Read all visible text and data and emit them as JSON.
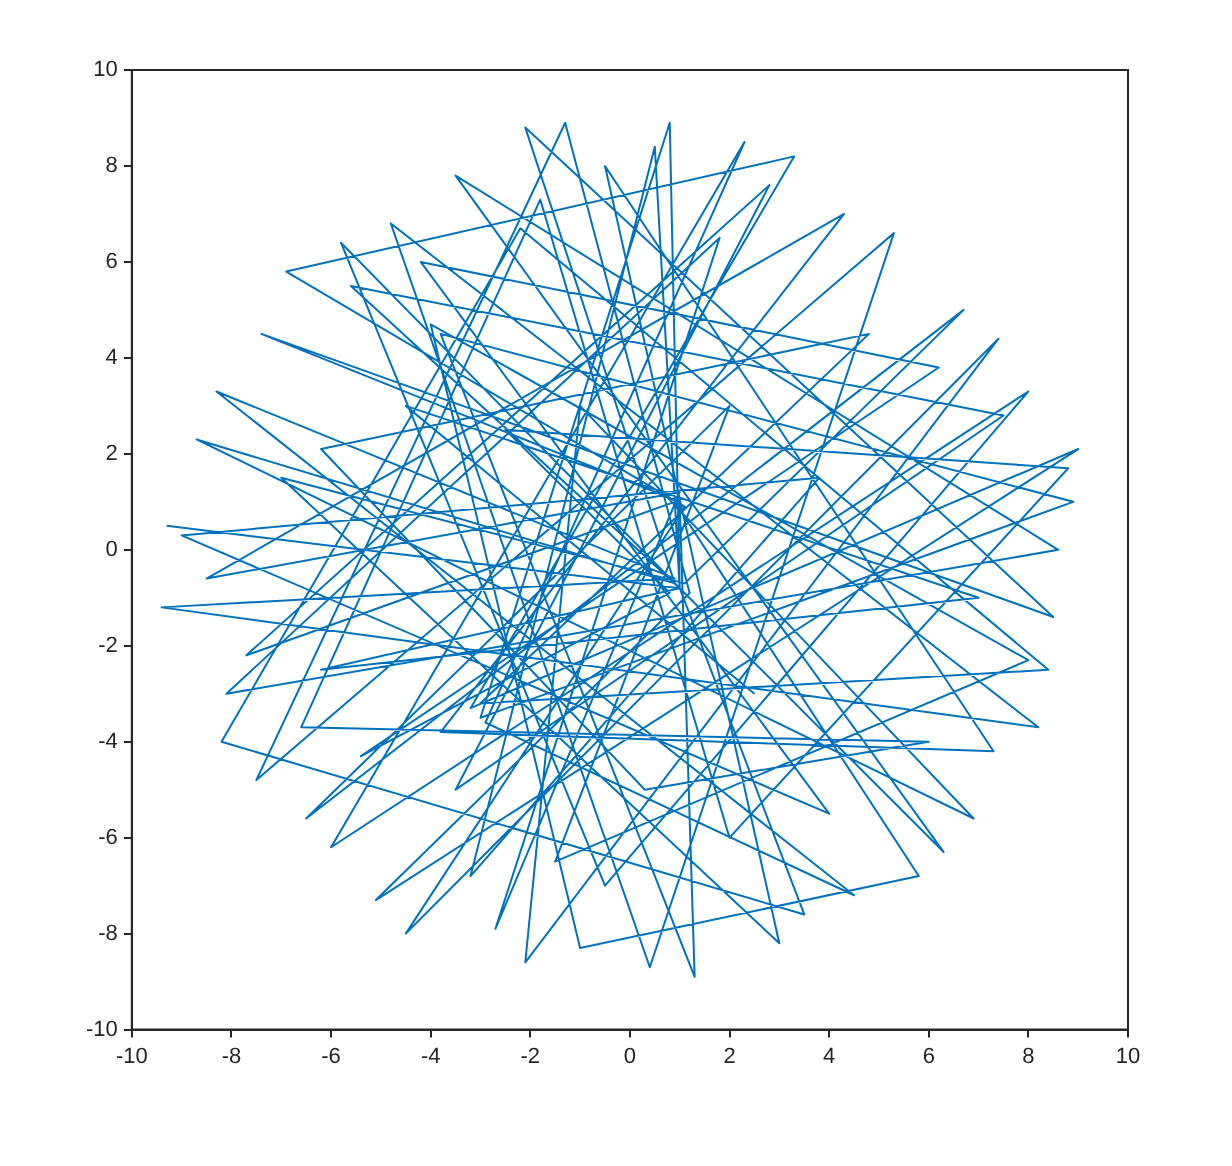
{
  "chart_data": {
    "type": "line",
    "xlim": [
      -10,
      10
    ],
    "ylim": [
      -10,
      10
    ],
    "xticks": [
      -10,
      -8,
      -6,
      -4,
      -2,
      0,
      2,
      4,
      6,
      8,
      10
    ],
    "yticks": [
      -10,
      -8,
      -6,
      -4,
      -2,
      0,
      2,
      4,
      6,
      8,
      10
    ],
    "grid": false,
    "legend": false,
    "marker": "none",
    "line_style": "solid",
    "series": [
      {
        "color": "#0072bd",
        "x": [
          -9.3,
          1.0,
          0.8,
          -3.0,
          8.9,
          -3.8,
          1.3,
          1.0,
          -7.4,
          8.5,
          -2.1,
          0.9,
          -8.7,
          6.9,
          -1.0,
          -2.1,
          7.4,
          -4.5,
          1.1,
          -6.9,
          3.3,
          -3.2,
          9.0,
          -5.1,
          1.2,
          -1.3,
          -7.5,
          5.3,
          0.4,
          -4.8,
          8.2,
          -9.4,
          0.9,
          -8.3,
          4.5,
          -2.9,
          2.3,
          -6.0,
          8.0,
          -0.5,
          -5.8,
          1.0,
          6.3,
          -3.5,
          8.6,
          -8.1,
          1.8,
          -2.7,
          1.0,
          -8.5,
          4.3,
          -3.8,
          7.3,
          -0.5,
          3.0,
          -7.0,
          1.1,
          6.7,
          -6.5,
          2.0,
          -1.5,
          8.0,
          -4.0,
          -1.0,
          5.8,
          0.9,
          -7.7,
          2.8,
          -3.5,
          7.5,
          -5.6,
          1.0,
          3.5,
          -8.2,
          -2.2,
          8.4,
          -3.0,
          4.8,
          -6.2,
          0.3,
          6.0,
          -6.6,
          -1.8,
          2.0,
          8.8,
          -2.5,
          0.8,
          -5.4,
          6.2,
          -4.2,
          4.0,
          -9.0,
          3.8,
          -3.2,
          0.5,
          1.0,
          -6.2,
          7.0,
          -4.5,
          2.5
        ],
        "values": [
          0.5,
          -0.8,
          8.9,
          -3.5,
          1.0,
          4.5,
          -8.9,
          1.0,
          4.5,
          -1.4,
          8.8,
          -0.7,
          2.3,
          -5.6,
          3.0,
          -8.6,
          4.4,
          -8.0,
          0.9,
          5.8,
          8.2,
          -3.3,
          2.1,
          -7.3,
          -0.9,
          8.9,
          -4.8,
          6.6,
          -8.7,
          6.8,
          -3.7,
          -1.2,
          -0.6,
          3.3,
          -7.2,
          -3.6,
          8.5,
          -6.2,
          3.3,
          -7.0,
          6.4,
          -0.8,
          -6.3,
          7.8,
          0.0,
          -3.0,
          6.5,
          -7.9,
          1.2,
          -0.6,
          7.0,
          -3.8,
          -4.2,
          8.0,
          -8.2,
          1.5,
          -0.7,
          5.0,
          -5.6,
          3.0,
          -6.5,
          -2.3,
          4.7,
          -8.3,
          -6.8,
          1.0,
          -2.2,
          7.6,
          -5.0,
          2.8,
          5.5,
          -0.8,
          -7.6,
          -4.0,
          6.7,
          -2.5,
          -3.2,
          4.5,
          2.1,
          -5.0,
          -4.0,
          -3.7,
          7.3,
          -6.0,
          1.7,
          2.5,
          -0.9,
          -4.3,
          3.8,
          6.0,
          -5.5,
          0.3,
          1.5,
          -6.8,
          8.4,
          -0.8,
          -2.5,
          -1.0,
          3.0,
          -3.0
        ]
      }
    ]
  }
}
